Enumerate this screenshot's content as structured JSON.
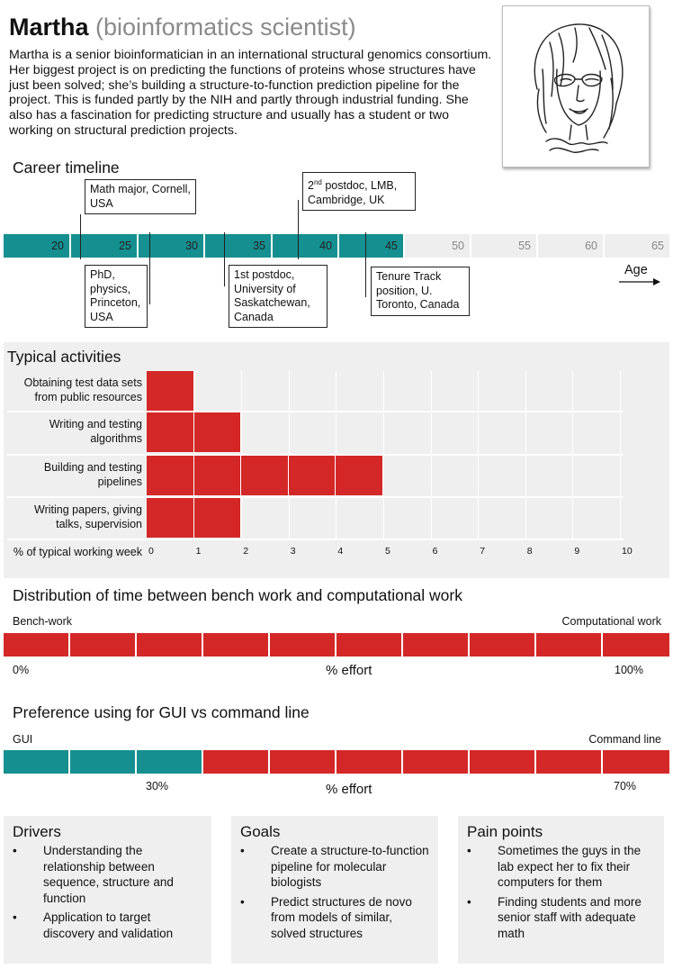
{
  "header": {
    "name": "Martha",
    "role": "(bioinformatics scientist)",
    "bio": "Martha is a senior bioinformatician in an international structural genomics consortium. Her biggest project is on predicting the functions of proteins whose structures have just been solved; she’s building a structure-to-function prediction pipeline for the project. This is funded partly by the NIH and partly through industrial funding. She also has a fascination for predicting structure and usually has a student or two working on structural prediction projects."
  },
  "career": {
    "title": "Career timeline",
    "ages": [
      "20",
      "25",
      "30",
      "35",
      "40",
      "45",
      "50",
      "55",
      "60",
      "65"
    ],
    "active_until": "45",
    "events_above": [
      {
        "text": "Math major, Cornell, USA"
      },
      {
        "ordinal": "2",
        "sup": "nd",
        "text": " postdoc, LMB, Cambridge, UK"
      }
    ],
    "events_below": [
      {
        "text": "PhD, physics, Princeton, USA"
      },
      {
        "text": "1st postdoc, University of Saskatchewan, Canada"
      },
      {
        "text": "Tenure Track position, U. Toronto, Canada"
      }
    ],
    "axis_label": "Age"
  },
  "activities": {
    "title": "Typical activities",
    "axis_label": "% of typical working week",
    "ticks": [
      "0",
      "1",
      "2",
      "3",
      "4",
      "5",
      "6",
      "7",
      "8",
      "9",
      "10"
    ]
  },
  "chart_data": {
    "type": "bar",
    "orientation": "horizontal",
    "title": "Typical activities",
    "xlabel": "% of typical working week",
    "xlim": [
      0,
      10
    ],
    "categories": [
      "Obtaining test data sets from public resources",
      "Writing and testing algorithms",
      "Building and testing pipelines",
      "Writing papers, giving talks, supervision"
    ],
    "values": [
      1,
      2,
      5,
      2
    ]
  },
  "bench": {
    "title": "Distribution of time between bench work and computational work",
    "left_label": "Bench-work",
    "right_label": "Computational work",
    "min_label": "0%",
    "center_label": "% effort",
    "max_label": "100%",
    "computational_fraction": 1.0
  },
  "gui": {
    "title": "Preference using for GUI vs command line",
    "left_label": "GUI",
    "right_label": "Command line",
    "left_value": "30%",
    "center_label": "% effort",
    "right_value": "70%",
    "gui_fraction": 0.3
  },
  "drivers": {
    "title": "Drivers",
    "items": [
      "Understanding the relationship between sequence, structure and function",
      "Application to target discovery and validation"
    ]
  },
  "goals": {
    "title": "Goals",
    "items": [
      "Create a structure-to-function pipeline for molecular biologists",
      "Predict structures de novo from models of similar, solved structures"
    ]
  },
  "pain": {
    "title": "Pain points",
    "items": [
      "Sometimes the guys in the lab expect her to fix their computers for them",
      "Finding students and more senior staff with adequate math"
    ]
  },
  "colors": {
    "teal": "#158f8f",
    "red": "#d42828",
    "panel_gray": "#efefef"
  },
  "bullet": "•"
}
